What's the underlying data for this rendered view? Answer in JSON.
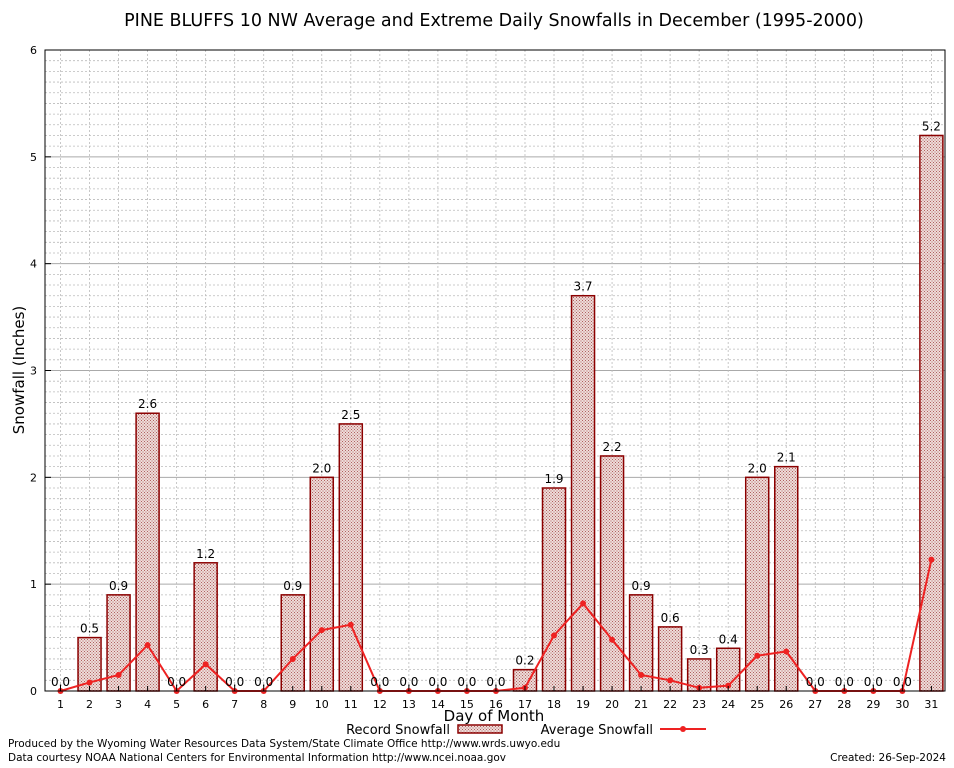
{
  "chart_data": {
    "type": "bar",
    "title": "PINE BLUFFS 10 NW Average and Extreme Daily Snowfalls in December (1995-2000)",
    "xlabel": "Day of Month",
    "ylabel": "Snowfall (Inches)",
    "ylim": [
      0,
      6
    ],
    "yticks": [
      "0",
      "1",
      "2",
      "3",
      "4",
      "5",
      "6"
    ],
    "categories": [
      "1",
      "2",
      "3",
      "4",
      "5",
      "6",
      "7",
      "8",
      "9",
      "10",
      "11",
      "12",
      "13",
      "14",
      "15",
      "16",
      "17",
      "18",
      "19",
      "20",
      "21",
      "22",
      "23",
      "24",
      "25",
      "26",
      "27",
      "28",
      "29",
      "30",
      "31"
    ],
    "series": [
      {
        "name": "Record Snowfall",
        "type": "bar",
        "color": "#8b0000",
        "fill": "#e8d0cc",
        "values": [
          0.0,
          0.5,
          0.9,
          2.6,
          0.0,
          1.2,
          0.0,
          0.0,
          0.9,
          2.0,
          2.5,
          0.0,
          0.0,
          0.0,
          0.0,
          0.0,
          0.2,
          1.9,
          3.7,
          2.2,
          0.9,
          0.6,
          0.3,
          0.4,
          2.0,
          2.1,
          0.0,
          0.0,
          0.0,
          0.0,
          5.2
        ],
        "labels": [
          "0.0",
          "0.5",
          "0.9",
          "2.6",
          "0.0",
          "1.2",
          "0.0",
          "0.0",
          "0.9",
          "2.0",
          "2.5",
          "0.0",
          "0.0",
          "0.0",
          "0.0",
          "0.0",
          "0.2",
          "1.9",
          "3.7",
          "2.2",
          "0.9",
          "0.6",
          "0.3",
          "0.4",
          "2.0",
          "2.1",
          "0.0",
          "0.0",
          "0.0",
          "0.0",
          "5.2"
        ]
      },
      {
        "name": "Average Snowfall",
        "type": "line",
        "color": "#ee2222",
        "values": [
          0.0,
          0.08,
          0.15,
          0.43,
          0.0,
          0.25,
          0.0,
          0.0,
          0.3,
          0.57,
          0.62,
          0.0,
          0.0,
          0.0,
          0.0,
          0.0,
          0.03,
          0.52,
          0.82,
          0.48,
          0.15,
          0.1,
          0.03,
          0.05,
          0.33,
          0.37,
          0.0,
          0.0,
          0.0,
          0.0,
          1.23
        ]
      }
    ],
    "grid": true,
    "legend_position": "bottom"
  },
  "footer": {
    "credit1": "Produced by the Wyoming Water Resources Data System/State Climate Office http://www.wrds.uwyo.edu",
    "credit2": "Data courtesy NOAA National Centers for Environmental Information http://www.ncei.noaa.gov",
    "created": "Created:  26-Sep-2024"
  }
}
